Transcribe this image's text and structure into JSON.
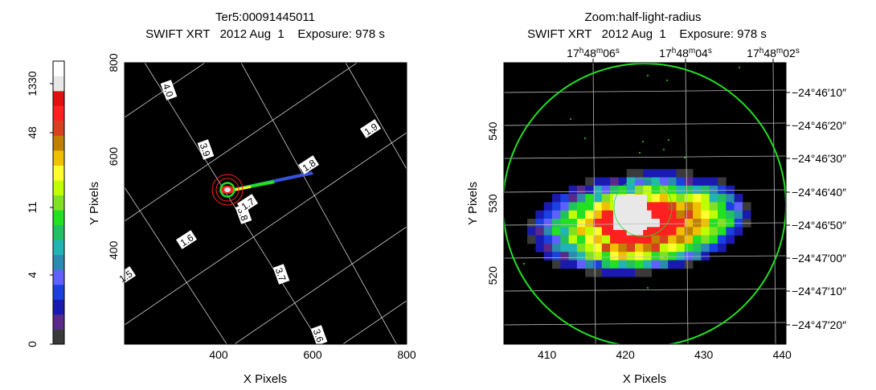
{
  "colorbar": {
    "colors": [
      "#3a3a3a",
      "#5a2a8a",
      "#1a1ab0",
      "#1a40e0",
      "#6060ff",
      "#2a8ab0",
      "#22b4b4",
      "#22c060",
      "#22e022",
      "#80e022",
      "#c0ff00",
      "#ffff30",
      "#f0c000",
      "#c08000",
      "#d84020",
      "#ff2020",
      "#e01010",
      "#e8e8e8",
      "#ffffff"
    ],
    "tick_labels": [
      "0",
      "4",
      "11",
      "48",
      "1330"
    ]
  },
  "chart_data": [
    {
      "type": "image",
      "title": "Ter5:00091445011",
      "subtitle": "SWIFT XRT   2012 Aug  1    Exposure: 978 s",
      "xlabel": "X Pixels",
      "ylabel": "Y Pixels",
      "xlim": [
        200,
        800
      ],
      "ylim": [
        200,
        800
      ],
      "xticks": [
        400,
        600,
        800
      ],
      "yticks": [
        400,
        600,
        800
      ],
      "grid_labels": [
        "4.0",
        "3.9",
        "3.8",
        "3.7",
        "3.6",
        "1.5",
        "1.6",
        "1.7",
        "1.8",
        "1.9"
      ],
      "source": {
        "x": 423,
        "y": 545
      }
    },
    {
      "type": "image",
      "title": "Zoom:half-light-radius",
      "subtitle": "SWIFT XRT   2012 Aug  1    Exposure: 978 s",
      "xlabel": "X Pixels",
      "ylabel": "Y Pixels",
      "xlim": [
        404.5,
        440.5
      ],
      "ylim": [
        510.5,
        549.5
      ],
      "xticks": [
        410,
        420,
        430,
        440
      ],
      "yticks": [
        520,
        530,
        540
      ],
      "ra_labels": [
        {
          "h": "17",
          "m": "48",
          "s": "06"
        },
        {
          "h": "17",
          "m": "48",
          "s": "04"
        },
        {
          "h": "17",
          "m": "48",
          "s": "02"
        }
      ],
      "dec_labels": [
        "−24°46′10″",
        "−24°46′20″",
        "−24°46′30″",
        "−24°46′40″",
        "−24°46′50″",
        "−24°47′00″",
        "−24°47′10″",
        "−24°47′20″"
      ]
    }
  ]
}
